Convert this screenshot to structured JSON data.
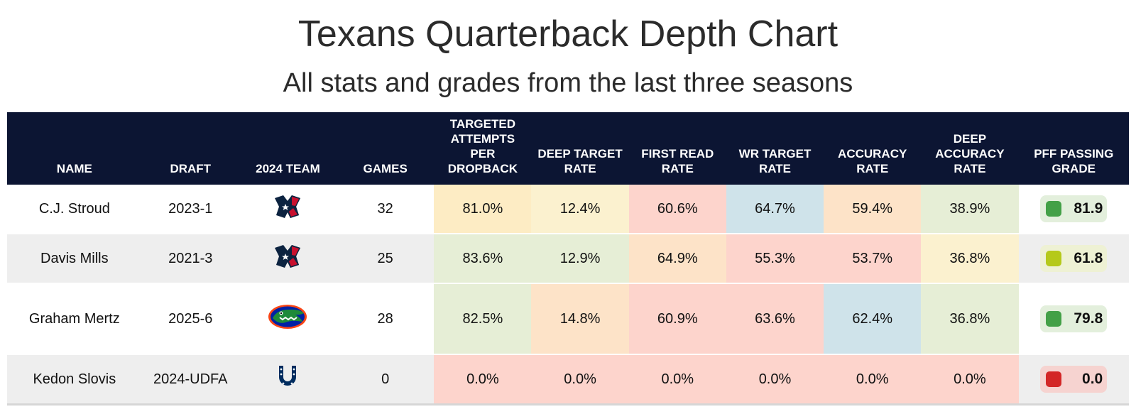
{
  "title": "Texans Quarterback Depth Chart",
  "subtitle": "All stats and grades from the last three seasons",
  "colors": {
    "header_bg": "#0c1533",
    "yellow": "#fdecc4",
    "yellow_light": "#fbf1cf",
    "green_light": "#e6eed6",
    "red_light": "#fdd4cc",
    "orange_light": "#fde3c8",
    "blue_light": "#cfe3ea",
    "grade_green": "#43a047",
    "grade_yellowgreen": "#b5c91a",
    "grade_red": "#d32626"
  },
  "chart_data": {
    "type": "table",
    "columns": [
      "Name",
      "Draft",
      "2024 Team",
      "Games",
      "Targeted Attempts per Dropback",
      "Deep Target Rate",
      "First Read Rate",
      "WR Target Rate",
      "Accuracy Rate",
      "Deep Accuracy Rate",
      "PFF Passing Grade"
    ],
    "rows": [
      {
        "name": "C.J. Stroud",
        "draft": "2023-1",
        "team_icon": "texans-logo-icon",
        "games": "32",
        "stats": [
          "81.0%",
          "12.4%",
          "60.6%",
          "64.7%",
          "59.4%",
          "38.9%"
        ],
        "stat_colors": [
          "#fdecc4",
          "#fbf1cf",
          "#fdd4cc",
          "#cfe3ea",
          "#fde3c8",
          "#e6eed6"
        ],
        "grade": "81.9",
        "grade_value": 81.9,
        "grade_color": "#43a047",
        "grade_bg": "#e3efdc"
      },
      {
        "name": "Davis Mills",
        "draft": "2021-3",
        "team_icon": "texans-logo-icon",
        "games": "25",
        "stats": [
          "83.6%",
          "12.9%",
          "64.9%",
          "55.3%",
          "53.7%",
          "36.8%"
        ],
        "stat_colors": [
          "#e6eed6",
          "#e6eed6",
          "#fde3c8",
          "#fdd4cc",
          "#fdd4cc",
          "#fbf1cf"
        ],
        "grade": "61.8",
        "grade_value": 61.8,
        "grade_color": "#b5c91a",
        "grade_bg": "#eef1d4"
      },
      {
        "name": "Graham Mertz",
        "draft": "2025-6",
        "team_icon": "gators-logo-icon",
        "games": "28",
        "stats": [
          "82.5%",
          "14.8%",
          "60.9%",
          "63.6%",
          "62.4%",
          "36.8%"
        ],
        "stat_colors": [
          "#e6eed6",
          "#fde3c8",
          "#fdd4cc",
          "#fdd4cc",
          "#cfe3ea",
          "#e6eed6"
        ],
        "grade": "79.8",
        "grade_value": 79.8,
        "grade_color": "#43a047",
        "grade_bg": "#e3efdc"
      },
      {
        "name": "Kedon Slovis",
        "draft": "2024-UDFA",
        "team_icon": "colts-logo-icon",
        "games": "0",
        "stats": [
          "0.0%",
          "0.0%",
          "0.0%",
          "0.0%",
          "0.0%",
          "0.0%"
        ],
        "stat_colors": [
          "#fdd4cc",
          "#fdd4cc",
          "#fdd4cc",
          "#fdd4cc",
          "#fdd4cc",
          "#fdd4cc"
        ],
        "grade": "0.0",
        "grade_value": 0.0,
        "grade_color": "#d32626",
        "grade_bg": "#f6d3d0"
      }
    ]
  }
}
